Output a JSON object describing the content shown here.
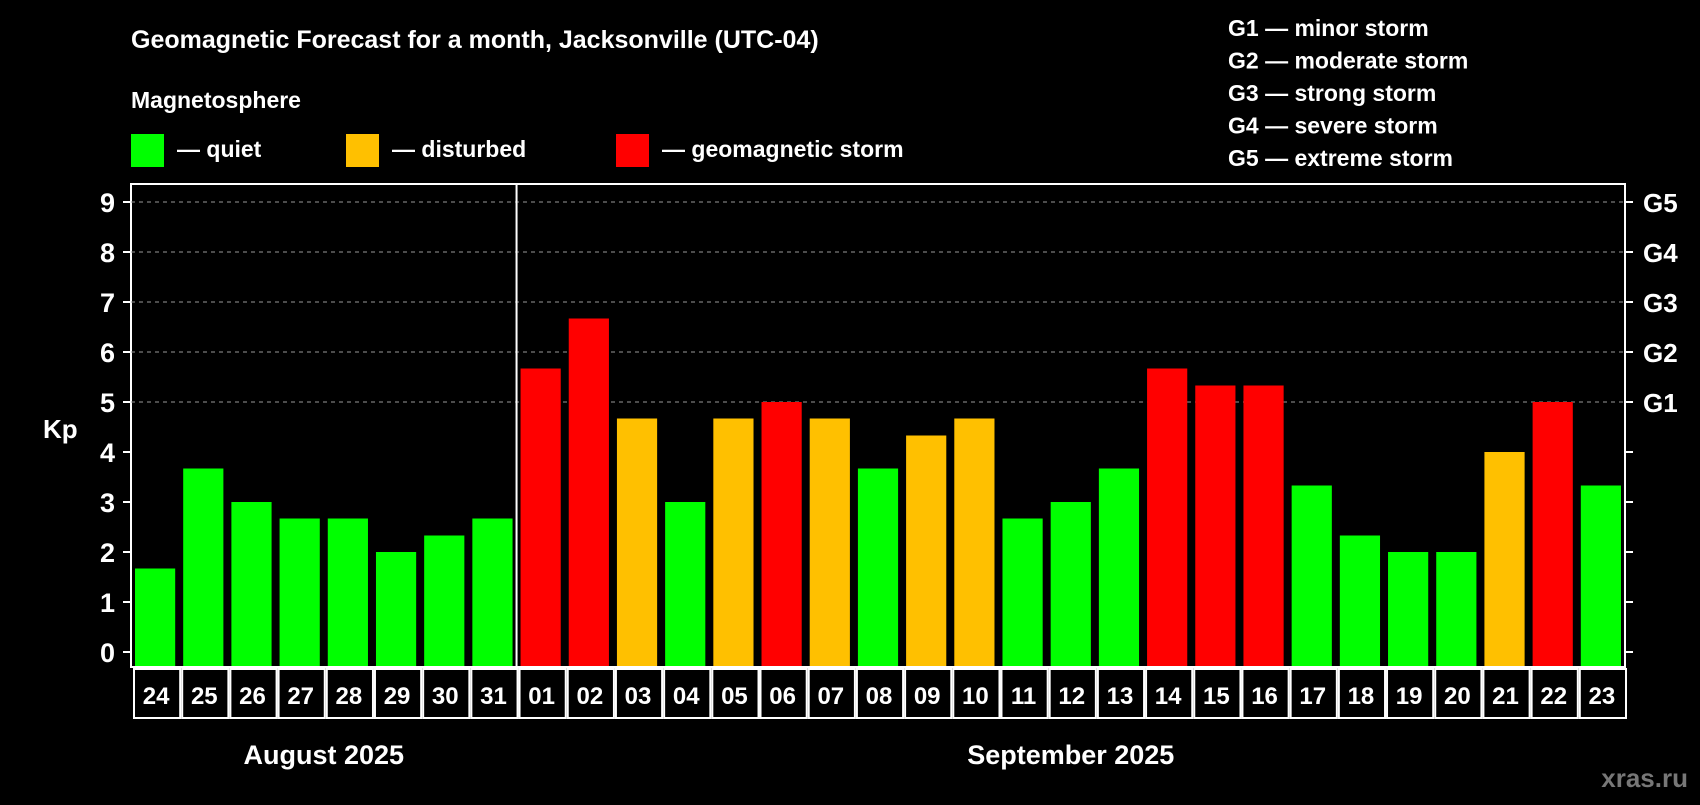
{
  "chart_data": {
    "type": "bar",
    "title": "Geomagnetic Forecast for a month, Jacksonville (UTC-04)",
    "legend_title": "Magnetosphere",
    "legend": [
      {
        "key": "quiet",
        "label": "— quiet",
        "color": "#00ff00"
      },
      {
        "key": "disturbed",
        "label": "— disturbed",
        "color": "#ffc000"
      },
      {
        "key": "storm",
        "label": "— geomagnetic storm",
        "color": "#ff0000"
      }
    ],
    "storm_scale": [
      "G1 — minor storm",
      "G2 — moderate storm",
      "G3 — strong storm",
      "G4 — severe storm",
      "G5 — extreme storm"
    ],
    "ylabel": "Kp",
    "ylim": [
      0,
      9
    ],
    "yticks": [
      "0",
      "1",
      "2",
      "3",
      "4",
      "5",
      "6",
      "7",
      "8",
      "9"
    ],
    "right_ticks": [
      {
        "value": 5,
        "label": "G1"
      },
      {
        "value": 6,
        "label": "G2"
      },
      {
        "value": 7,
        "label": "G3"
      },
      {
        "value": 8,
        "label": "G4"
      },
      {
        "value": 9,
        "label": "G5"
      }
    ],
    "grid": "dashed horizontal at Kp 5-9",
    "categories": [
      "24",
      "25",
      "26",
      "27",
      "28",
      "29",
      "30",
      "31",
      "01",
      "02",
      "03",
      "04",
      "05",
      "06",
      "07",
      "08",
      "09",
      "10",
      "11",
      "12",
      "13",
      "14",
      "15",
      "16",
      "17",
      "18",
      "19",
      "20",
      "21",
      "22",
      "23"
    ],
    "values": [
      1.67,
      3.67,
      3.0,
      2.67,
      2.67,
      2.0,
      2.33,
      2.67,
      5.67,
      6.67,
      4.67,
      3.0,
      4.67,
      5.0,
      4.67,
      3.67,
      4.33,
      4.67,
      2.67,
      3.0,
      3.67,
      5.67,
      5.33,
      5.33,
      3.33,
      2.33,
      2.0,
      2.0,
      4.0,
      5.0,
      3.33
    ],
    "levels": [
      "quiet",
      "quiet",
      "quiet",
      "quiet",
      "quiet",
      "quiet",
      "quiet",
      "quiet",
      "storm",
      "storm",
      "disturbed",
      "quiet",
      "disturbed",
      "storm",
      "disturbed",
      "quiet",
      "disturbed",
      "disturbed",
      "quiet",
      "quiet",
      "quiet",
      "storm",
      "storm",
      "storm",
      "quiet",
      "quiet",
      "quiet",
      "quiet",
      "disturbed",
      "storm",
      "quiet"
    ],
    "months": [
      {
        "label": "August 2025",
        "first_index": 0,
        "last_index": 7
      },
      {
        "label": "September 2025",
        "first_index": 8,
        "last_index": 30
      }
    ]
  },
  "watermark": "xras.ru"
}
